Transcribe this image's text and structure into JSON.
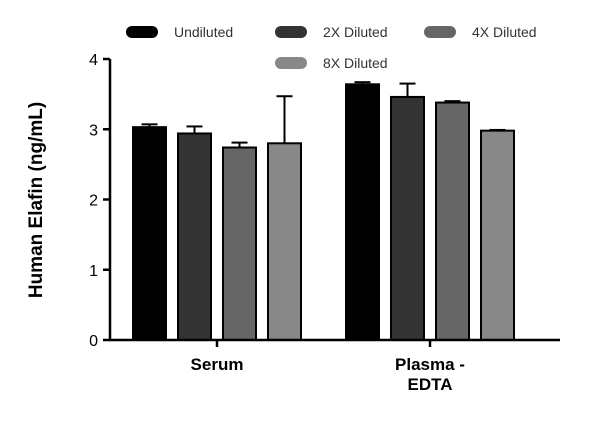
{
  "chart_data": {
    "type": "bar",
    "ylabel": "Human Elafin (ng/mL)",
    "ylim": [
      0,
      4
    ],
    "yticks": [
      0,
      1,
      2,
      3,
      4
    ],
    "categories": [
      "Serum",
      "Plasma -\nEDTA"
    ],
    "series": [
      {
        "name": "Undiluted",
        "color": "#000000",
        "values": [
          3.03,
          3.64
        ],
        "errors": [
          0.04,
          0.03
        ]
      },
      {
        "name": "2X Diluted",
        "color": "#333333",
        "values": [
          2.94,
          3.46
        ],
        "errors": [
          0.1,
          0.19
        ]
      },
      {
        "name": "4X Diluted",
        "color": "#666666",
        "values": [
          2.74,
          3.38
        ],
        "errors": [
          0.07,
          0.02
        ]
      },
      {
        "name": "8X Diluted",
        "color": "#888888",
        "values": [
          2.8,
          2.98
        ],
        "errors": [
          0.67,
          0.01
        ]
      }
    ],
    "legend_position": "top",
    "grid": false
  }
}
